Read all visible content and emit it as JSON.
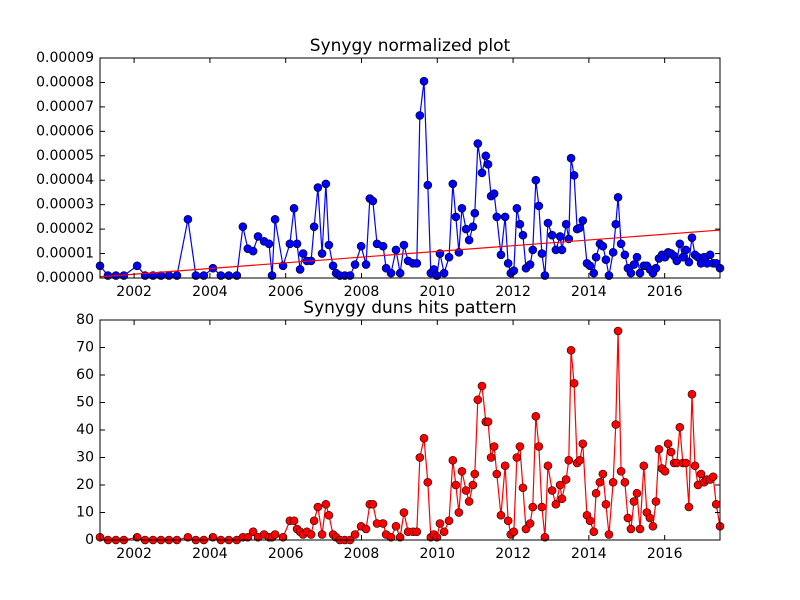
{
  "chart_data": [
    {
      "type": "line",
      "title": "Synygy normalized plot",
      "x": [
        2001.1,
        2001.31,
        2001.52,
        2001.73,
        2002.08,
        2002.29,
        2002.5,
        2002.71,
        2002.92,
        2003.13,
        2003.42,
        2003.63,
        2003.84,
        2004.08,
        2004.29,
        2004.5,
        2004.71,
        2004.87,
        2005.0,
        2005.14,
        2005.27,
        2005.43,
        2005.56,
        2005.64,
        2005.72,
        2005.93,
        2006.11,
        2006.22,
        2006.3,
        2006.38,
        2006.46,
        2006.56,
        2006.67,
        2006.75,
        2006.85,
        2006.96,
        2007.06,
        2007.14,
        2007.25,
        2007.33,
        2007.43,
        2007.56,
        2007.7,
        2007.83,
        2007.99,
        2008.12,
        2008.22,
        2008.3,
        2008.41,
        2008.57,
        2008.65,
        2008.78,
        2008.91,
        2009.02,
        2009.12,
        2009.23,
        2009.36,
        2009.46,
        2009.54,
        2009.65,
        2009.75,
        2009.83,
        2009.91,
        2009.99,
        2010.07,
        2010.18,
        2010.31,
        2010.41,
        2010.49,
        2010.57,
        2010.65,
        2010.76,
        2010.84,
        2010.94,
        2010.99,
        2011.07,
        2011.18,
        2011.28,
        2011.34,
        2011.42,
        2011.5,
        2011.57,
        2011.68,
        2011.79,
        2011.87,
        2011.94,
        2012.02,
        2012.1,
        2012.18,
        2012.26,
        2012.34,
        2012.45,
        2012.52,
        2012.6,
        2012.68,
        2012.76,
        2012.84,
        2012.92,
        2013.03,
        2013.13,
        2013.24,
        2013.29,
        2013.4,
        2013.47,
        2013.53,
        2013.61,
        2013.69,
        2013.76,
        2013.84,
        2013.95,
        2014.03,
        2014.13,
        2014.19,
        2014.29,
        2014.37,
        2014.45,
        2014.53,
        2014.64,
        2014.71,
        2014.77,
        2014.85,
        2014.95,
        2015.03,
        2015.11,
        2015.19,
        2015.27,
        2015.35,
        2015.45,
        2015.53,
        2015.61,
        2015.69,
        2015.77,
        2015.85,
        2015.93,
        2016.01,
        2016.09,
        2016.17,
        2016.25,
        2016.32,
        2016.4,
        2016.48,
        2016.56,
        2016.64,
        2016.72,
        2016.8,
        2016.88,
        2016.96,
        2017.04,
        2017.12,
        2017.2,
        2017.28,
        2017.36,
        2017.46
      ],
      "series": [
        {
          "color": "#0000ff",
          "marker": true,
          "values": [
            5e-06,
            1e-06,
            1e-06,
            1e-06,
            5e-06,
            1e-06,
            1e-06,
            1e-06,
            1e-06,
            1e-06,
            2.4e-05,
            1e-06,
            1e-06,
            4e-06,
            1e-06,
            1e-06,
            1e-06,
            2.1e-05,
            1.2e-05,
            1.1e-05,
            1.7e-05,
            1.5e-05,
            1.4e-05,
            1e-06,
            2.4e-05,
            5e-06,
            1.4e-05,
            2.85e-05,
            1.4e-05,
            3.5e-06,
            1e-05,
            7e-06,
            7e-06,
            2.1e-05,
            3.7e-05,
            1e-05,
            3.85e-05,
            1.35e-05,
            5e-06,
            2e-06,
            1e-06,
            1e-06,
            1e-06,
            5.5e-06,
            1.3e-05,
            5.5e-06,
            3.25e-05,
            3.15e-05,
            1.4e-05,
            1.3e-05,
            4e-06,
            2e-06,
            1.15e-05,
            2e-06,
            1.35e-05,
            7e-06,
            6e-06,
            6e-06,
            6.65e-05,
            8.05e-05,
            3.8e-05,
            2e-06,
            3.5e-06,
            1e-06,
            1e-05,
            2e-06,
            8.5e-06,
            3.85e-05,
            2.5e-05,
            1.05e-05,
            2.85e-05,
            2e-05,
            1.55e-05,
            2.1e-05,
            2.65e-05,
            5.5e-05,
            4.3e-05,
            5e-05,
            4.65e-05,
            3.35e-05,
            3.45e-05,
            2.5e-05,
            9.5e-06,
            2.5e-05,
            6e-06,
            2e-06,
            3e-06,
            2.85e-05,
            2.2e-05,
            1.75e-05,
            4e-06,
            5.5e-06,
            1.15e-05,
            4e-05,
            2.95e-05,
            1e-05,
            1e-06,
            2.25e-05,
            1.75e-05,
            1.15e-05,
            1.7e-05,
            1.15e-05,
            2.2e-05,
            1.6e-05,
            4.9e-05,
            4.2e-05,
            2e-05,
            2.05e-05,
            2.35e-05,
            6e-06,
            5e-06,
            2e-06,
            8.5e-06,
            1.4e-05,
            1.3e-05,
            7.5e-06,
            1e-06,
            1.05e-05,
            2.2e-05,
            3.3e-05,
            1.4e-05,
            9.5e-06,
            4e-06,
            2e-06,
            5.5e-06,
            8.5e-06,
            2e-06,
            5e-06,
            5e-06,
            3.5e-06,
            2e-06,
            4e-06,
            8e-06,
            9.5e-06,
            8.5e-06,
            1.05e-05,
            1e-05,
            9e-06,
            7e-06,
            1.4e-05,
            8.5e-06,
            1.15e-05,
            6.5e-06,
            1.65e-05,
            9.5e-06,
            8.5e-06,
            6e-06,
            8.5e-06,
            6e-06,
            9.5e-06,
            6e-06,
            6e-06,
            4e-06
          ]
        },
        {
          "color": "#ff0000",
          "marker": false,
          "x": [
            2001.1,
            2017.46
          ],
          "values": [
            5e-07,
            1.96e-05
          ]
        }
      ],
      "xlim": [
        2001.1,
        2017.46
      ],
      "xticks": [
        2002,
        2004,
        2006,
        2008,
        2010,
        2012,
        2014,
        2016
      ],
      "ylim": [
        0,
        9e-05
      ],
      "yticks": [
        {
          "value": 0,
          "label": "0.00000"
        },
        {
          "value": 1e-05,
          "label": "0.00001"
        },
        {
          "value": 2e-05,
          "label": "0.00002"
        },
        {
          "value": 3e-05,
          "label": "0.00003"
        },
        {
          "value": 4e-05,
          "label": "0.00004"
        },
        {
          "value": 5e-05,
          "label": "0.00005"
        },
        {
          "value": 6e-05,
          "label": "0.00006"
        },
        {
          "value": 7e-05,
          "label": "0.00007"
        },
        {
          "value": 8e-05,
          "label": "0.00008"
        },
        {
          "value": 9e-05,
          "label": "0.00009"
        }
      ]
    },
    {
      "type": "line",
      "title": "Synygy duns hits pattern",
      "x": [
        2001.1,
        2001.31,
        2001.52,
        2001.73,
        2002.08,
        2002.29,
        2002.5,
        2002.71,
        2002.92,
        2003.13,
        2003.42,
        2003.63,
        2003.84,
        2004.08,
        2004.29,
        2004.5,
        2004.71,
        2004.87,
        2005.0,
        2005.14,
        2005.27,
        2005.43,
        2005.56,
        2005.64,
        2005.72,
        2005.93,
        2006.11,
        2006.22,
        2006.3,
        2006.38,
        2006.46,
        2006.56,
        2006.67,
        2006.75,
        2006.85,
        2006.96,
        2007.06,
        2007.14,
        2007.25,
        2007.33,
        2007.43,
        2007.56,
        2007.7,
        2007.83,
        2007.99,
        2008.12,
        2008.22,
        2008.3,
        2008.41,
        2008.57,
        2008.65,
        2008.78,
        2008.91,
        2009.02,
        2009.12,
        2009.23,
        2009.36,
        2009.46,
        2009.54,
        2009.65,
        2009.75,
        2009.83,
        2009.91,
        2009.99,
        2010.07,
        2010.18,
        2010.31,
        2010.41,
        2010.49,
        2010.57,
        2010.65,
        2010.76,
        2010.84,
        2010.94,
        2010.99,
        2011.07,
        2011.18,
        2011.28,
        2011.34,
        2011.42,
        2011.5,
        2011.57,
        2011.68,
        2011.79,
        2011.87,
        2011.94,
        2012.02,
        2012.1,
        2012.18,
        2012.26,
        2012.34,
        2012.45,
        2012.52,
        2012.6,
        2012.68,
        2012.76,
        2012.84,
        2012.92,
        2013.03,
        2013.13,
        2013.24,
        2013.29,
        2013.4,
        2013.47,
        2013.53,
        2013.61,
        2013.69,
        2013.76,
        2013.84,
        2013.95,
        2014.03,
        2014.13,
        2014.19,
        2014.29,
        2014.37,
        2014.45,
        2014.53,
        2014.64,
        2014.71,
        2014.77,
        2014.85,
        2014.95,
        2015.03,
        2015.11,
        2015.19,
        2015.27,
        2015.35,
        2015.45,
        2015.53,
        2015.61,
        2015.69,
        2015.77,
        2015.85,
        2015.93,
        2016.01,
        2016.09,
        2016.17,
        2016.25,
        2016.32,
        2016.4,
        2016.48,
        2016.56,
        2016.64,
        2016.72,
        2016.8,
        2016.88,
        2016.96,
        2017.04,
        2017.12,
        2017.2,
        2017.28,
        2017.36,
        2017.46
      ],
      "series": [
        {
          "color": "#ff0000",
          "marker": true,
          "values": [
            1,
            0,
            0,
            0,
            1,
            0,
            0,
            0,
            0,
            0,
            1,
            0,
            0,
            1,
            0,
            0,
            0,
            1,
            1,
            3,
            1,
            2,
            1,
            1,
            2,
            1,
            7,
            7,
            4,
            3,
            2,
            3,
            2,
            7,
            12,
            2,
            13,
            9,
            2,
            1,
            0,
            0,
            0,
            2,
            5,
            4,
            13,
            13,
            6,
            6,
            2,
            1,
            5,
            1,
            10,
            3,
            3,
            3,
            30,
            37,
            21,
            1,
            2,
            1,
            6,
            3,
            7,
            29,
            20,
            10,
            25,
            18,
            14,
            20,
            24,
            51,
            56,
            43,
            43,
            30,
            34,
            24,
            9,
            27,
            7,
            2,
            3,
            30,
            34,
            19,
            4,
            6,
            12,
            45,
            34,
            12,
            1,
            27,
            18,
            13,
            20,
            15,
            22,
            29,
            69,
            57,
            28,
            29,
            35,
            9,
            7,
            3,
            17,
            21,
            24,
            13,
            2,
            21,
            42,
            76,
            25,
            21,
            8,
            4,
            14,
            17,
            4,
            27,
            10,
            8,
            5,
            14,
            33,
            26,
            25,
            35,
            32,
            28,
            28,
            41,
            28,
            28,
            12,
            53,
            27,
            20,
            24,
            21,
            22,
            22,
            23,
            13,
            5
          ]
        }
      ],
      "xlim": [
        2001.1,
        2017.46
      ],
      "xticks": [
        2002,
        2004,
        2006,
        2008,
        2010,
        2012,
        2014,
        2016
      ],
      "ylim": [
        0,
        80
      ],
      "yticks": [
        0,
        10,
        20,
        30,
        40,
        50,
        60,
        70,
        80
      ]
    }
  ]
}
